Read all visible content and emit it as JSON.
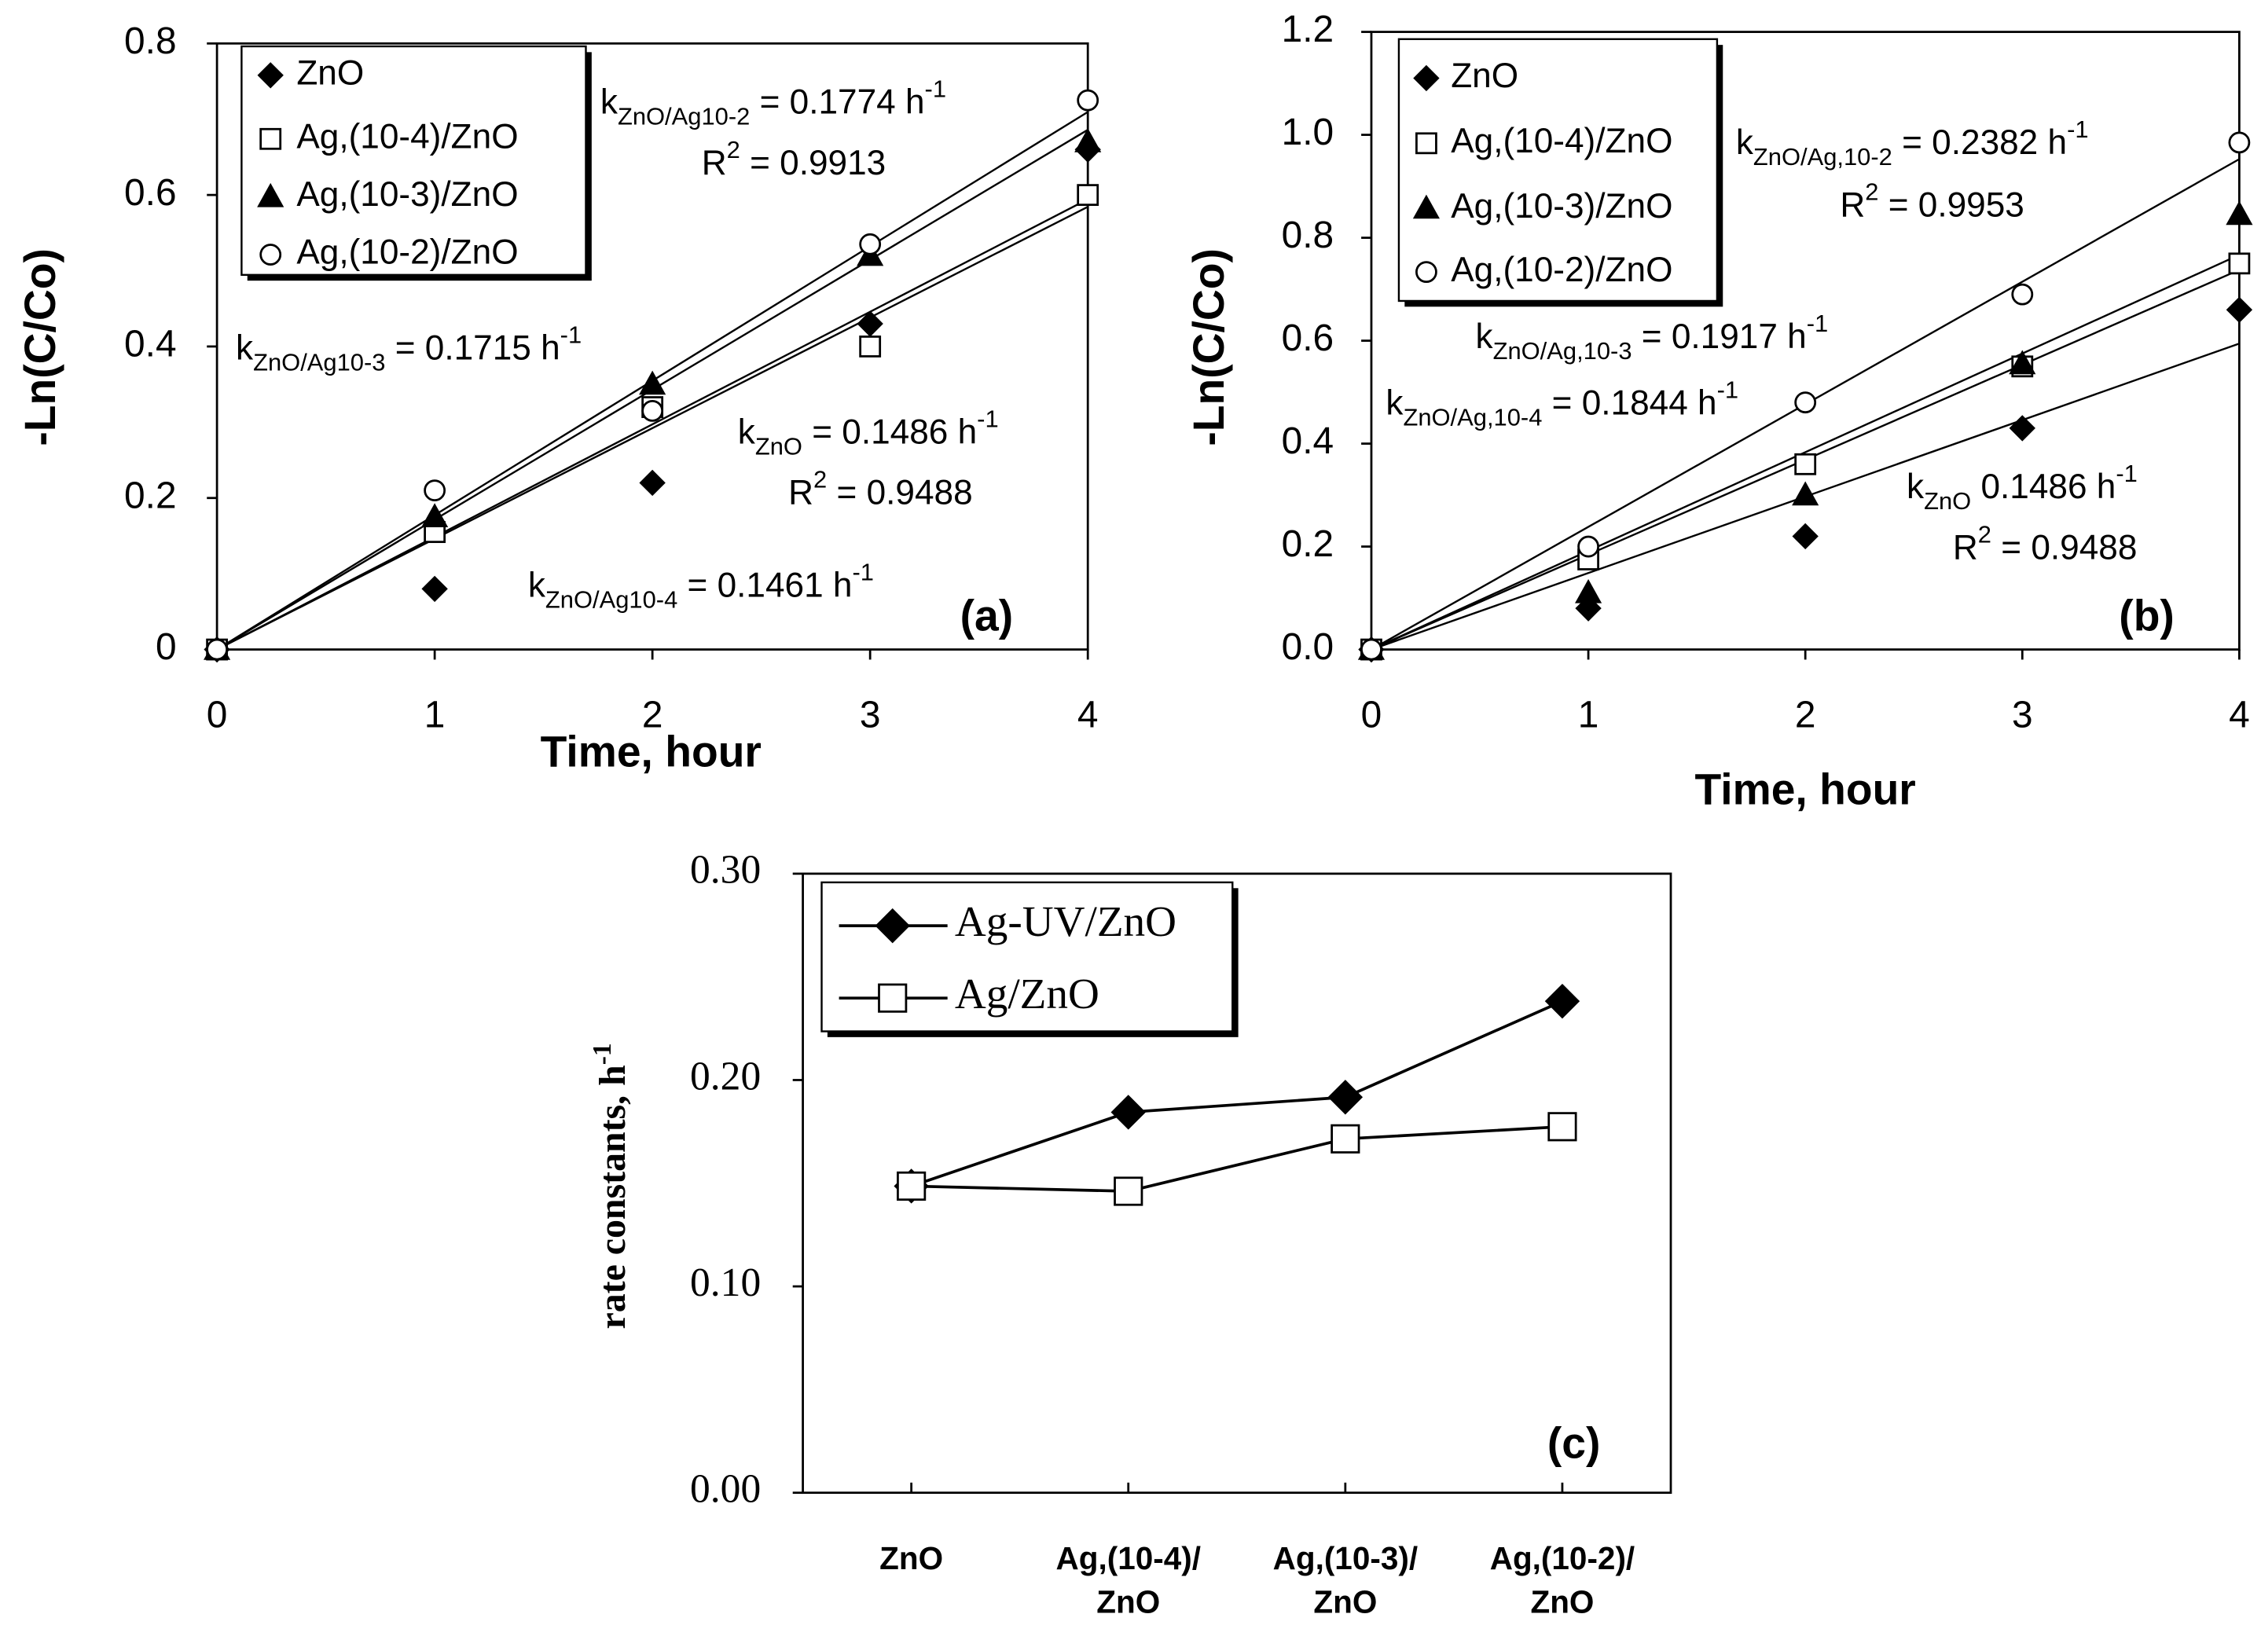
{
  "chart_data": [
    {
      "type": "scatter",
      "panel_label": "(a)",
      "xlabel": "Time, hour",
      "ylabel": "-Ln(C/Co)",
      "x": [
        0,
        1,
        2,
        3,
        4
      ],
      "xlim": [
        0,
        4
      ],
      "xticks": [
        0,
        1,
        2,
        3,
        4
      ],
      "ylim": [
        0,
        0.8
      ],
      "yticks": [
        0,
        0.2,
        0.4,
        0.6,
        0.8
      ],
      "series": [
        {
          "name": "ZnO",
          "marker": "diamond",
          "filled": true,
          "color": "#000000",
          "values": [
            0,
            0.08,
            0.22,
            0.43,
            0.66
          ]
        },
        {
          "name": "Ag,(10-4)/ZnO",
          "marker": "square",
          "filled": false,
          "color": "#000000",
          "values": [
            0,
            0.155,
            0.32,
            0.4,
            0.6
          ]
        },
        {
          "name": "Ag,(10-3)/ZnO",
          "marker": "triangle",
          "filled": true,
          "color": "#000000",
          "values": [
            0,
            0.175,
            0.35,
            0.52,
            0.67
          ]
        },
        {
          "name": "Ag,(10-2)/ZnO",
          "marker": "circle",
          "filled": false,
          "color": "#000000",
          "values": [
            0,
            0.21,
            0.315,
            0.535,
            0.725
          ]
        }
      ],
      "trendlines": [
        {
          "slope": 0.1774
        },
        {
          "slope": 0.1715
        },
        {
          "slope": 0.1486
        },
        {
          "slope": 0.1461
        }
      ],
      "annotations": [
        [
          {
            "text": "k"
          },
          {
            "text": "ZnO/Ag10-2",
            "script": "sub"
          },
          {
            "text": " = 0.1774 h"
          },
          {
            "text": "-1",
            "script": "sup"
          }
        ],
        [
          {
            "text": "R"
          },
          {
            "text": "2",
            "script": "sup"
          },
          {
            "text": " = 0.9913"
          }
        ],
        [
          {
            "text": "k"
          },
          {
            "text": "ZnO/Ag10-3",
            "script": "sub"
          },
          {
            "text": " = 0.1715 h"
          },
          {
            "text": "-1",
            "script": "sup"
          }
        ],
        [
          {
            "text": "k"
          },
          {
            "text": "ZnO",
            "script": "sub"
          },
          {
            "text": " = 0.1486 h"
          },
          {
            "text": "-1",
            "script": "sup"
          }
        ],
        [
          {
            "text": "R"
          },
          {
            "text": "2",
            "script": "sup"
          },
          {
            "text": " = 0.9488"
          }
        ],
        [
          {
            "text": "k"
          },
          {
            "text": "ZnO/Ag10-4",
            "script": "sub"
          },
          {
            "text": " = 0.1461 h"
          },
          {
            "text": "-1",
            "script": "sup"
          }
        ]
      ]
    },
    {
      "type": "scatter",
      "panel_label": "(b)",
      "xlabel": "Time, hour",
      "ylabel": "-Ln(C/Co)",
      "x": [
        0,
        1,
        2,
        3,
        4
      ],
      "xlim": [
        0,
        4
      ],
      "xticks": [
        0,
        1,
        2,
        3,
        4
      ],
      "ylim": [
        0,
        1.2
      ],
      "yticks": [
        {
          "value": 0,
          "label": "0.0"
        },
        0.2,
        0.4,
        0.6,
        0.8,
        {
          "value": 1,
          "label": "1.0"
        },
        1.2
      ],
      "series": [
        {
          "name": "ZnO",
          "marker": "diamond",
          "filled": true,
          "color": "#000000",
          "values": [
            0,
            0.08,
            0.22,
            0.43,
            0.66
          ]
        },
        {
          "name": "Ag,(10-4)/ZnO",
          "marker": "square",
          "filled": false,
          "color": "#000000",
          "values": [
            0,
            0.175,
            0.36,
            0.55,
            0.75
          ]
        },
        {
          "name": "Ag,(10-3)/ZnO",
          "marker": "triangle",
          "filled": true,
          "color": "#000000",
          "values": [
            0,
            0.11,
            0.3,
            0.555,
            0.845
          ]
        },
        {
          "name": "Ag,(10-2)/ZnO",
          "marker": "circle",
          "filled": false,
          "color": "#000000",
          "values": [
            0,
            0.2,
            0.48,
            0.69,
            0.985
          ]
        }
      ],
      "trendlines": [
        {
          "slope": 0.2382
        },
        {
          "slope": 0.1917
        },
        {
          "slope": 0.1844
        },
        {
          "slope": 0.1486
        }
      ],
      "annotations": [
        [
          {
            "text": "k"
          },
          {
            "text": "ZnO/Ag,10-2",
            "script": "sub"
          },
          {
            "text": " = 0.2382 h"
          },
          {
            "text": "-1",
            "script": "sup"
          }
        ],
        [
          {
            "text": "R"
          },
          {
            "text": "2",
            "script": "sup"
          },
          {
            "text": " = 0.9953"
          }
        ],
        [
          {
            "text": "k"
          },
          {
            "text": "ZnO/Ag,10-3",
            "script": "sub"
          },
          {
            "text": " = 0.1917 h"
          },
          {
            "text": "-1",
            "script": "sup"
          }
        ],
        [
          {
            "text": "k"
          },
          {
            "text": "ZnO/Ag,10-4",
            "script": "sub"
          },
          {
            "text": " = 0.1844 h"
          },
          {
            "text": "-1",
            "script": "sup"
          }
        ],
        [
          {
            "text": "k"
          },
          {
            "text": "ZnO",
            "script": "sub"
          },
          {
            "text": " 0.1486 h"
          },
          {
            "text": "-1",
            "script": "sup"
          }
        ],
        [
          {
            "text": "R"
          },
          {
            "text": "2",
            "script": "sup"
          },
          {
            "text": " = 0.9488"
          }
        ]
      ]
    },
    {
      "type": "line",
      "panel_label": "(c)",
      "ylabel": [
        {
          "text": "rate constants, h"
        },
        {
          "text": "-1",
          "script": "sup"
        }
      ],
      "categories": [
        "ZnO",
        "Ag,(10-4)/ ZnO",
        "Ag,(10-3)/ ZnO",
        "Ag,(10-2)/ ZnO"
      ],
      "ylim": [
        0,
        0.3
      ],
      "yticks": [
        {
          "value": 0,
          "label": "0.00"
        },
        {
          "value": 0.1,
          "label": "0.10"
        },
        {
          "value": 0.2,
          "label": "0.20"
        },
        {
          "value": 0.3,
          "label": "0.30"
        }
      ],
      "series": [
        {
          "name": "Ag-UV/ZnO",
          "marker": "diamond",
          "filled": true,
          "color": "#000000",
          "values": [
            0.1486,
            0.1844,
            0.1917,
            0.2382
          ]
        },
        {
          "name": "Ag/ZnO",
          "marker": "square",
          "filled": false,
          "color": "#000000",
          "values": [
            0.1486,
            0.1461,
            0.1715,
            0.1774
          ]
        }
      ]
    }
  ]
}
